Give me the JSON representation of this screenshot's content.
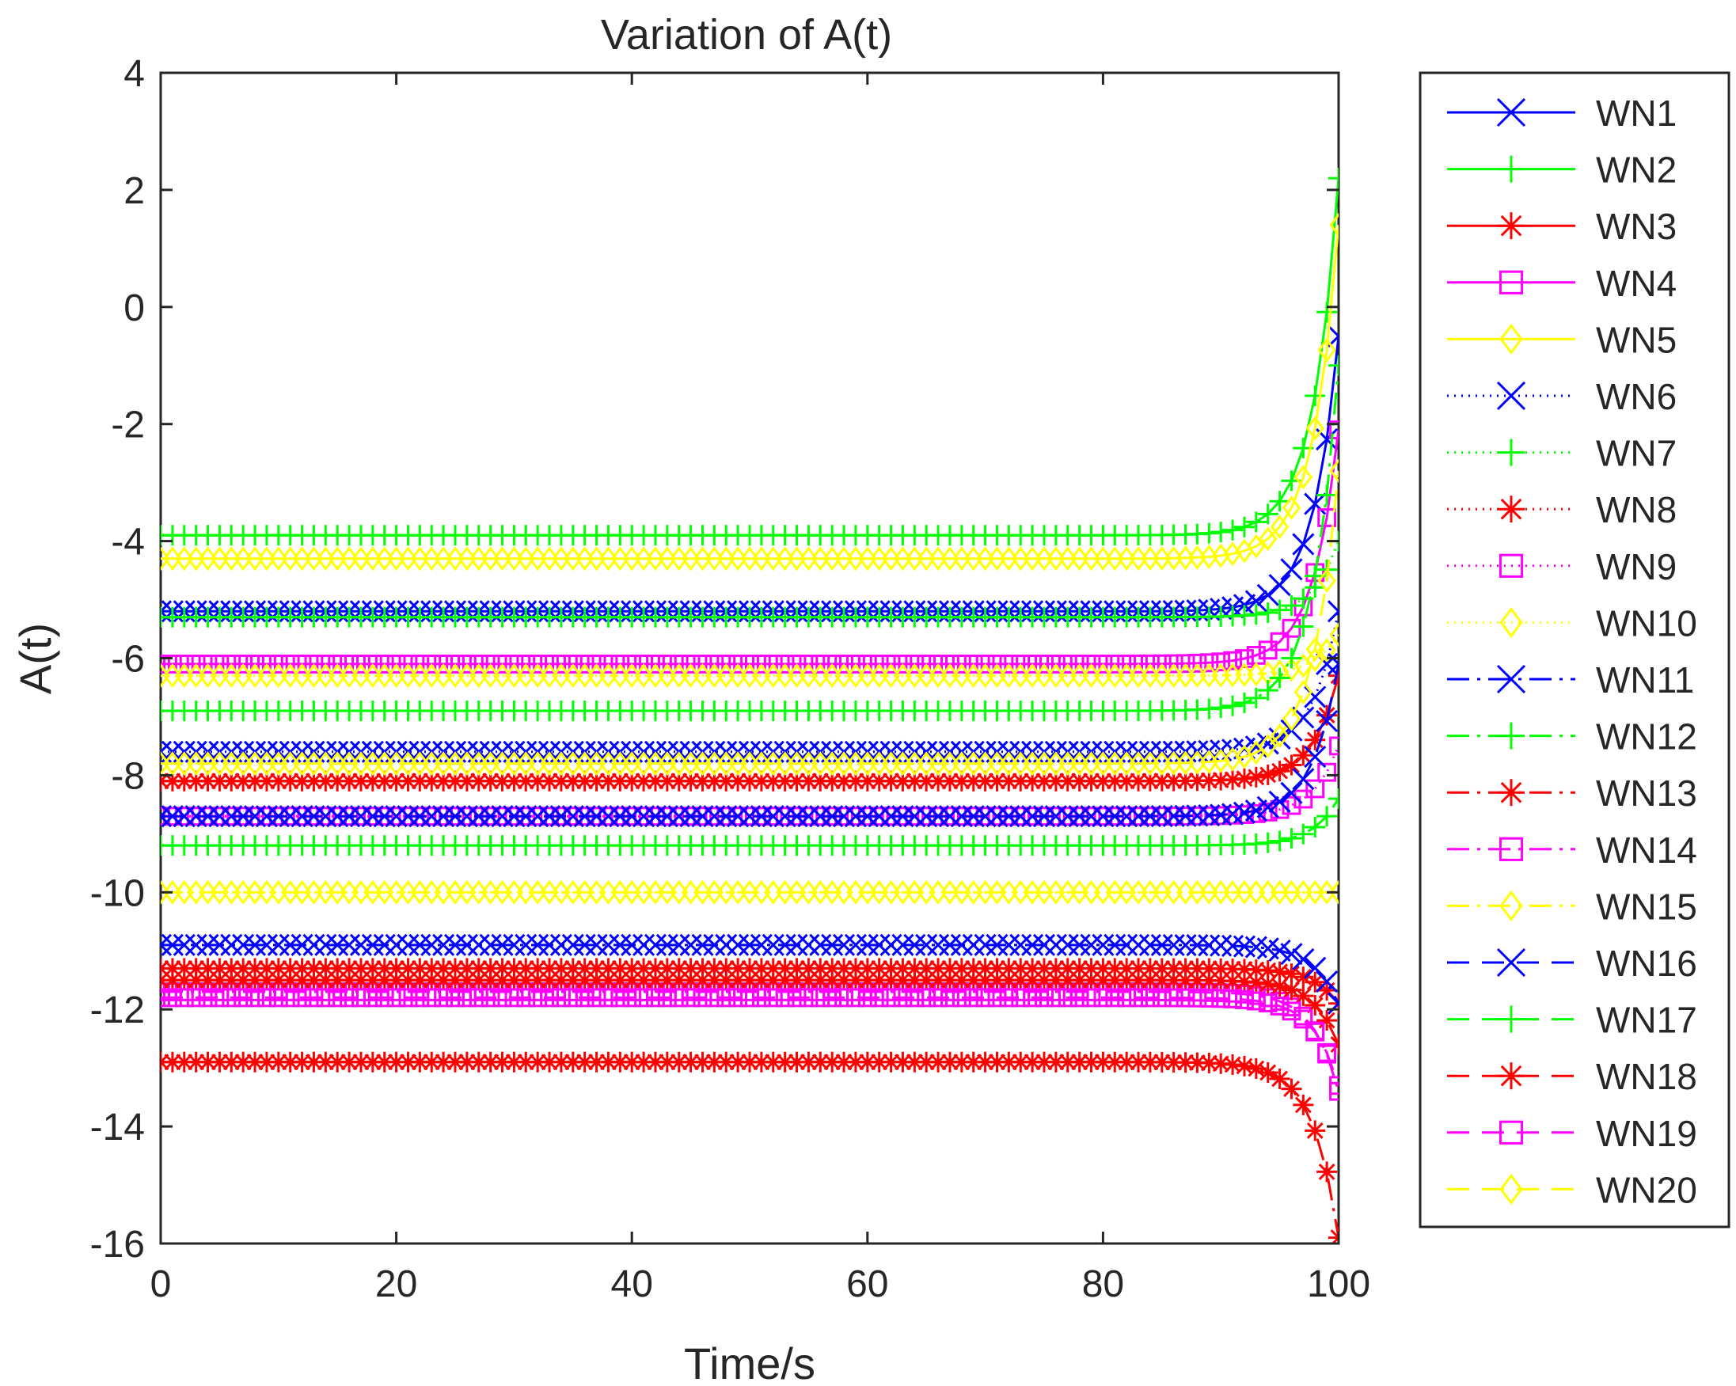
{
  "chart_data": {
    "type": "line",
    "title": "Variation of A(t)",
    "xlabel": "Time/s",
    "ylabel": "A(t)",
    "xlim": [
      0,
      100
    ],
    "ylim": [
      -16,
      4
    ],
    "xticks": [
      0,
      20,
      40,
      60,
      80,
      100
    ],
    "yticks": [
      4,
      2,
      0,
      -2,
      -4,
      -6,
      -8,
      -10,
      -12,
      -14,
      -16
    ],
    "x_step": 1,
    "legend_position": "outside-right",
    "series": [
      {
        "name": "WN1",
        "color": "#0000ff",
        "marker": "x",
        "line": "solid",
        "base": -5.2,
        "end": -0.5
      },
      {
        "name": "WN2",
        "color": "#00ff00",
        "marker": "plus",
        "line": "solid",
        "base": -3.9,
        "end": 2.2
      },
      {
        "name": "WN3",
        "color": "#ff0000",
        "marker": "star",
        "line": "solid",
        "base": -8.1,
        "end": -6.3
      },
      {
        "name": "WN4",
        "color": "#ff00ff",
        "marker": "square",
        "line": "solid",
        "base": -6.1,
        "end": -2.1
      },
      {
        "name": "WN5",
        "color": "#ffff00",
        "marker": "diamond",
        "line": "solid",
        "base": -4.3,
        "end": 1.4
      },
      {
        "name": "WN6",
        "color": "#0000ff",
        "marker": "x",
        "line": "dotted",
        "base": -7.6,
        "end": -5.2
      },
      {
        "name": "WN7",
        "color": "#00ff00",
        "marker": "plus",
        "line": "dotted",
        "base": -5.3,
        "end": -4.0
      },
      {
        "name": "WN8",
        "color": "#ff0000",
        "marker": "star",
        "line": "dotted",
        "base": -11.3,
        "end": -11.9
      },
      {
        "name": "WN9",
        "color": "#ff00ff",
        "marker": "square",
        "line": "dotted",
        "base": -8.7,
        "end": -7.5
      },
      {
        "name": "WN10",
        "color": "#ffff00",
        "marker": "diamond",
        "line": "dotted",
        "base": -6.3,
        "end": -5.6
      },
      {
        "name": "WN11",
        "color": "#0000ff",
        "marker": "x",
        "line": "dashdot",
        "base": -10.9,
        "end": -11.9
      },
      {
        "name": "WN12",
        "color": "#00ff00",
        "marker": "plus",
        "line": "dashdot",
        "base": -6.9,
        "end": -1.0
      },
      {
        "name": "WN13",
        "color": "#ff0000",
        "marker": "star",
        "line": "dashdot",
        "base": -12.9,
        "end": -15.9
      },
      {
        "name": "WN14",
        "color": "#ff00ff",
        "marker": "square",
        "line": "dashdot",
        "base": -11.7,
        "end": -13.4
      },
      {
        "name": "WN15",
        "color": "#ffff00",
        "marker": "diamond",
        "line": "dashdot",
        "base": -10.0,
        "end": -10.0
      },
      {
        "name": "WN16",
        "color": "#0000ff",
        "marker": "x",
        "line": "dashed",
        "base": -8.7,
        "end": -6.1
      },
      {
        "name": "WN17",
        "color": "#00ff00",
        "marker": "plus",
        "line": "dashed",
        "base": -9.2,
        "end": -8.4
      },
      {
        "name": "WN18",
        "color": "#ff0000",
        "marker": "star",
        "line": "dashed",
        "base": -11.5,
        "end": -12.6
      },
      {
        "name": "WN19",
        "color": "#ff00ff",
        "marker": "square",
        "line": "dashed",
        "base": -11.8,
        "end": -13.3
      },
      {
        "name": "WN20",
        "color": "#ffff00",
        "marker": "diamond",
        "line": "dashed",
        "base": -7.8,
        "end": -2.8
      }
    ]
  }
}
